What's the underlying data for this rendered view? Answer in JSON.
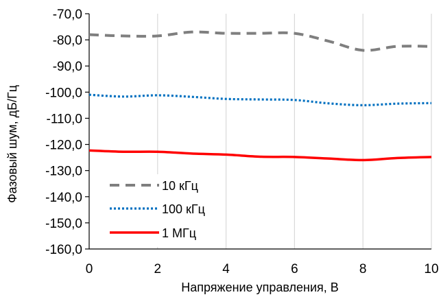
{
  "chart_data": {
    "type": "line",
    "title": "",
    "xlabel": "Напряжение управления, В",
    "ylabel": "Фазовый шум, дБ/Гц",
    "xlim": [
      0,
      10
    ],
    "ylim": [
      -160,
      -70
    ],
    "x_ticks": [
      0,
      2,
      4,
      6,
      8,
      10
    ],
    "x_tick_labels": [
      "0",
      "2",
      "4",
      "6",
      "8",
      "10"
    ],
    "y_ticks": [
      -70,
      -80,
      -90,
      -100,
      -110,
      -120,
      -130,
      -140,
      -150,
      -160
    ],
    "y_tick_labels": [
      "-70,0",
      "-80,0",
      "-90,0",
      "-100,0",
      "-110,0",
      "-120,0",
      "-130,0",
      "-140,0",
      "-150,0",
      "-160,0"
    ],
    "grid": "vertical",
    "legend_position": "bottom-left",
    "series": [
      {
        "name": "10 кГц",
        "color": "#7f7f7f",
        "style": "dashed",
        "x": [
          0,
          1,
          2,
          3,
          4,
          5,
          6,
          7,
          8,
          9,
          10
        ],
        "y": [
          -78.0,
          -78.5,
          -78.5,
          -77.0,
          -77.5,
          -77.5,
          -77.5,
          -80.5,
          -84.0,
          -82.5,
          -82.5
        ]
      },
      {
        "name": "100 кГц",
        "color": "#0070c0",
        "style": "dotted",
        "x": [
          0,
          1,
          2,
          3,
          4,
          5,
          6,
          7,
          8,
          9,
          10
        ],
        "y": [
          -101.0,
          -101.7,
          -101.2,
          -101.8,
          -102.6,
          -102.8,
          -103.0,
          -104.3,
          -105.0,
          -104.4,
          -104.2
        ]
      },
      {
        "name": "1 МГц",
        "color": "#ff0000",
        "style": "solid",
        "x": [
          0,
          1,
          2,
          3,
          4,
          5,
          6,
          7,
          8,
          9,
          10
        ],
        "y": [
          -122.3,
          -122.8,
          -122.8,
          -123.5,
          -123.9,
          -124.7,
          -124.8,
          -125.4,
          -126.0,
          -125.2,
          -124.8
        ]
      }
    ]
  }
}
